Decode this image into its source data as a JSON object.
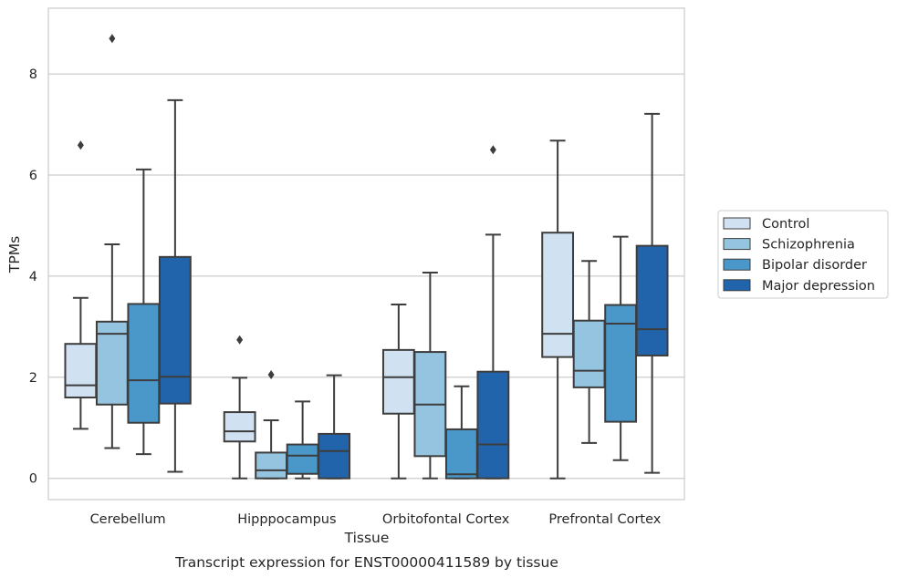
{
  "chart_data": {
    "type": "box",
    "caption": "Transcript expression for ENST00000411589 by tissue",
    "xlabel": "Tissue",
    "ylabel": "TPMs",
    "ylim": [
      -0.42,
      9.3
    ],
    "yticks": [
      0,
      2,
      4,
      6,
      8
    ],
    "grid": "horizontal",
    "legend_position": "right",
    "categories": [
      "Cerebellum",
      "Hipppocampus",
      "Orbitofontal Cortex",
      "Prefrontal Cortex"
    ],
    "series": [
      {
        "name": "Control",
        "color": "#d0e1f2",
        "boxes": [
          {
            "whisker_low": 0.98,
            "q1": 1.6,
            "median": 1.84,
            "q3": 2.66,
            "whisker_high": 3.57,
            "outliers": [
              6.59
            ]
          },
          {
            "whisker_low": 0.0,
            "q1": 0.73,
            "median": 0.93,
            "q3": 1.31,
            "whisker_high": 1.99,
            "outliers": [
              2.74
            ]
          },
          {
            "whisker_low": 0.0,
            "q1": 1.28,
            "median": 2.0,
            "q3": 2.54,
            "whisker_high": 3.44,
            "outliers": []
          },
          {
            "whisker_low": 0.0,
            "q1": 2.4,
            "median": 2.86,
            "q3": 4.86,
            "whisker_high": 6.68,
            "outliers": []
          }
        ]
      },
      {
        "name": "Schizophrenia",
        "color": "#94c4df",
        "boxes": [
          {
            "whisker_low": 0.6,
            "q1": 1.46,
            "median": 2.86,
            "q3": 3.1,
            "whisker_high": 4.63,
            "outliers": [
              8.7
            ]
          },
          {
            "whisker_low": 0.0,
            "q1": 0.0,
            "median": 0.16,
            "q3": 0.51,
            "whisker_high": 1.15,
            "outliers": [
              2.05
            ]
          },
          {
            "whisker_low": 0.0,
            "q1": 0.44,
            "median": 1.46,
            "q3": 2.5,
            "whisker_high": 4.07,
            "outliers": []
          },
          {
            "whisker_low": 0.7,
            "q1": 1.8,
            "median": 2.13,
            "q3": 3.12,
            "whisker_high": 4.3,
            "outliers": []
          }
        ]
      },
      {
        "name": "Bipolar disorder",
        "color": "#4a98c9",
        "boxes": [
          {
            "whisker_low": 0.48,
            "q1": 1.1,
            "median": 1.94,
            "q3": 3.45,
            "whisker_high": 6.11,
            "outliers": []
          },
          {
            "whisker_low": 0.0,
            "q1": 0.09,
            "median": 0.45,
            "q3": 0.67,
            "whisker_high": 1.52,
            "outliers": []
          },
          {
            "whisker_low": 0.0,
            "q1": 0.0,
            "median": 0.08,
            "q3": 0.97,
            "whisker_high": 1.82,
            "outliers": []
          },
          {
            "whisker_low": 0.36,
            "q1": 1.12,
            "median": 3.06,
            "q3": 3.43,
            "whisker_high": 4.78,
            "outliers": []
          }
        ]
      },
      {
        "name": "Major depression",
        "color": "#2164ab",
        "boxes": [
          {
            "whisker_low": 0.13,
            "q1": 1.48,
            "median": 2.01,
            "q3": 4.38,
            "whisker_high": 7.48,
            "outliers": []
          },
          {
            "whisker_low": 0.0,
            "q1": 0.0,
            "median": 0.54,
            "q3": 0.88,
            "whisker_high": 2.04,
            "outliers": []
          },
          {
            "whisker_low": 0.0,
            "q1": 0.0,
            "median": 0.67,
            "q3": 2.11,
            "whisker_high": 4.82,
            "outliers": [
              6.5
            ]
          },
          {
            "whisker_low": 0.11,
            "q1": 2.43,
            "median": 2.95,
            "q3": 4.6,
            "whisker_high": 7.21,
            "outliers": []
          }
        ]
      }
    ]
  }
}
